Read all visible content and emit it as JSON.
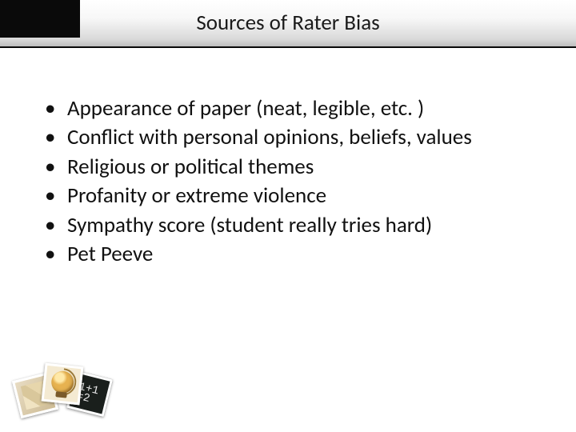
{
  "title": "Sources of Rater Bias",
  "bullets": [
    "Appearance of paper (neat, legible, etc. )",
    "Conflict with personal opinions, beliefs, values",
    "Religious or political themes",
    "Profanity or extreme violence",
    "Sympathy score (student really tries hard)",
    "Pet Peeve"
  ],
  "style": {
    "slide_width": 720,
    "slide_height": 540,
    "background_color": "#ffffff",
    "title_bar": {
      "gradient_top": "#ffffff",
      "gradient_bottom": "#bdbdbd",
      "border_color": "#0a0a0a",
      "block_color": "#0a0a0a",
      "block_width": 100,
      "block_height": 47,
      "height": 60
    },
    "title_text": {
      "font_family": "Segoe UI",
      "font_size_pt": 20,
      "color": "#1a1a1a"
    },
    "body_text": {
      "font_family": "Calibri",
      "font_size_pt": 20,
      "color": "#111111",
      "line_height": 1.35,
      "bullet_glyph": "•"
    },
    "decor_photos": {
      "border_color": "#ffffff",
      "shadow": "rgba(0,0,0,0.45)",
      "photo1_bg": "#d9c79b",
      "photo2_bg": "#f4ead2",
      "photo3_bg": "#1a1f1c",
      "globe_color": "#e7b250"
    }
  }
}
